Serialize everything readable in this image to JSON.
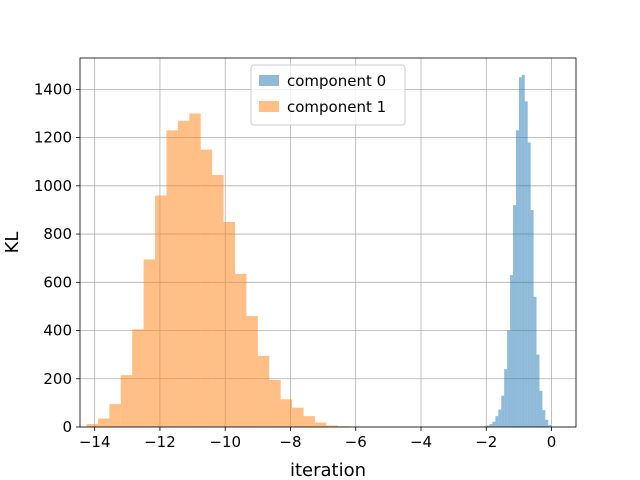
{
  "chart_data": {
    "type": "bar",
    "title": "",
    "xlabel": "iteration",
    "ylabel": "KL",
    "xlim": [
      -14.45,
      0.75
    ],
    "ylim": [
      0,
      1530
    ],
    "xticks": [
      -14,
      -12,
      -10,
      -8,
      -6,
      -4,
      -2,
      0
    ],
    "xtick_labels": [
      "−14",
      "−12",
      "−10",
      "−8",
      "−6",
      "−4",
      "−2",
      "0"
    ],
    "yticks": [
      0,
      200,
      400,
      600,
      800,
      1000,
      1200,
      1400
    ],
    "ytick_labels": [
      "0",
      "200",
      "400",
      "600",
      "800",
      "1000",
      "1200",
      "1400"
    ],
    "grid": true,
    "legend_position": "top-center",
    "series": [
      {
        "name": "component 0",
        "color": "#1f77b4",
        "opacity": 0.5,
        "bin_edges": [
          -2.08,
          -1.99,
          -1.9,
          -1.81,
          -1.72,
          -1.63,
          -1.54,
          -1.45,
          -1.36,
          -1.27,
          -1.18,
          -1.09,
          -1.0,
          -0.91,
          -0.82,
          -0.73,
          -0.64,
          -0.55,
          -0.46,
          -0.37,
          -0.28,
          -0.19,
          -0.1,
          -0.01
        ],
        "counts": [
          3,
          6,
          12,
          22,
          45,
          72,
          130,
          240,
          400,
          630,
          920,
          1230,
          1450,
          1460,
          1350,
          1180,
          900,
          540,
          300,
          150,
          70,
          30,
          8
        ]
      },
      {
        "name": "component 1",
        "color": "#ff7f0e",
        "opacity": 0.5,
        "bin_edges": [
          -14.25,
          -13.9,
          -13.55,
          -13.2,
          -12.85,
          -12.5,
          -12.15,
          -11.8,
          -11.45,
          -11.1,
          -10.75,
          -10.4,
          -10.05,
          -9.7,
          -9.35,
          -9.0,
          -8.65,
          -8.3,
          -7.95,
          -7.6,
          -7.25,
          -6.9,
          -6.55,
          -6.2,
          -5.85
        ],
        "counts": [
          12,
          35,
          95,
          215,
          405,
          695,
          960,
          1230,
          1270,
          1300,
          1150,
          1045,
          850,
          635,
          460,
          295,
          195,
          115,
          80,
          45,
          18,
          6,
          3,
          1
        ]
      }
    ]
  },
  "colors": {
    "axis": "#000000",
    "grid": "#b0b0b0",
    "background": "#ffffff"
  }
}
